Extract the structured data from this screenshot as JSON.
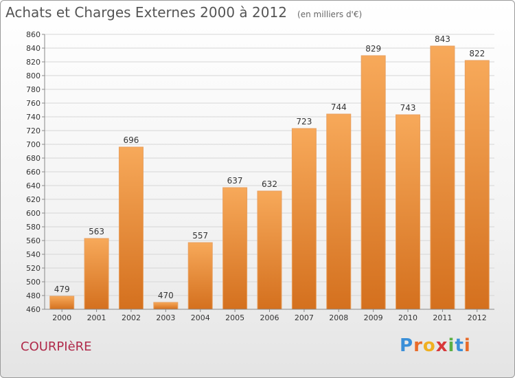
{
  "header": {
    "title": "Achats et Charges Externes 2000 à 2012",
    "subtitle": "(en milliers d'€)"
  },
  "footer": {
    "town": "COURPIèRE",
    "brand_letters": [
      "P",
      "r",
      "o",
      "x",
      "i",
      "t",
      "i"
    ],
    "brand_colors": [
      "#3a8fd8",
      "#e86b2a",
      "#f0b020",
      "#d8383a",
      "#5bb043",
      "#3a8fd8",
      "#e86b2a"
    ]
  },
  "chart_data": {
    "type": "bar",
    "categories": [
      "2000",
      "2001",
      "2002",
      "2003",
      "2004",
      "2005",
      "2006",
      "2007",
      "2008",
      "2009",
      "2010",
      "2011",
      "2012"
    ],
    "values": [
      479,
      563,
      696,
      470,
      557,
      637,
      632,
      723,
      744,
      829,
      743,
      843,
      822
    ],
    "ylim": [
      460,
      860
    ],
    "ytick_step": 20,
    "grid": "horizontal",
    "bar_color_top": "#f7a95a",
    "bar_color_bottom": "#d4701e"
  }
}
